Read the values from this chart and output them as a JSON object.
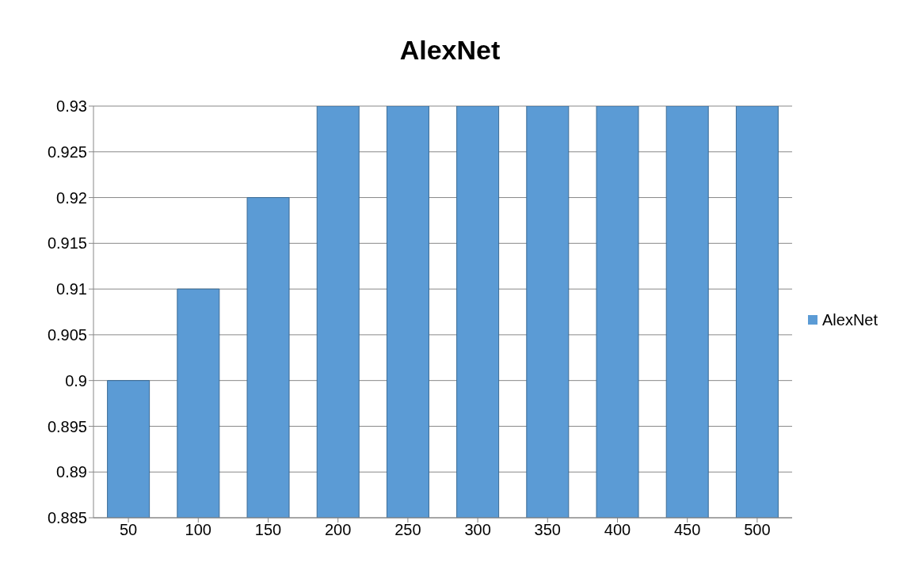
{
  "chart_data": {
    "type": "bar",
    "title": "AlexNet",
    "categories": [
      "50",
      "100",
      "150",
      "200",
      "250",
      "300",
      "350",
      "400",
      "450",
      "500"
    ],
    "series": [
      {
        "name": "AlexNet",
        "color": "#5b9bd5",
        "values": [
          0.9,
          0.91,
          0.92,
          0.93,
          0.93,
          0.93,
          0.93,
          0.93,
          0.93,
          0.93
        ]
      }
    ],
    "ylim": [
      0.885,
      0.93
    ],
    "yticks": [
      0.885,
      0.89,
      0.895,
      0.9,
      0.905,
      0.91,
      0.915,
      0.92,
      0.925,
      0.93
    ],
    "grid": "y",
    "legend": "right"
  }
}
